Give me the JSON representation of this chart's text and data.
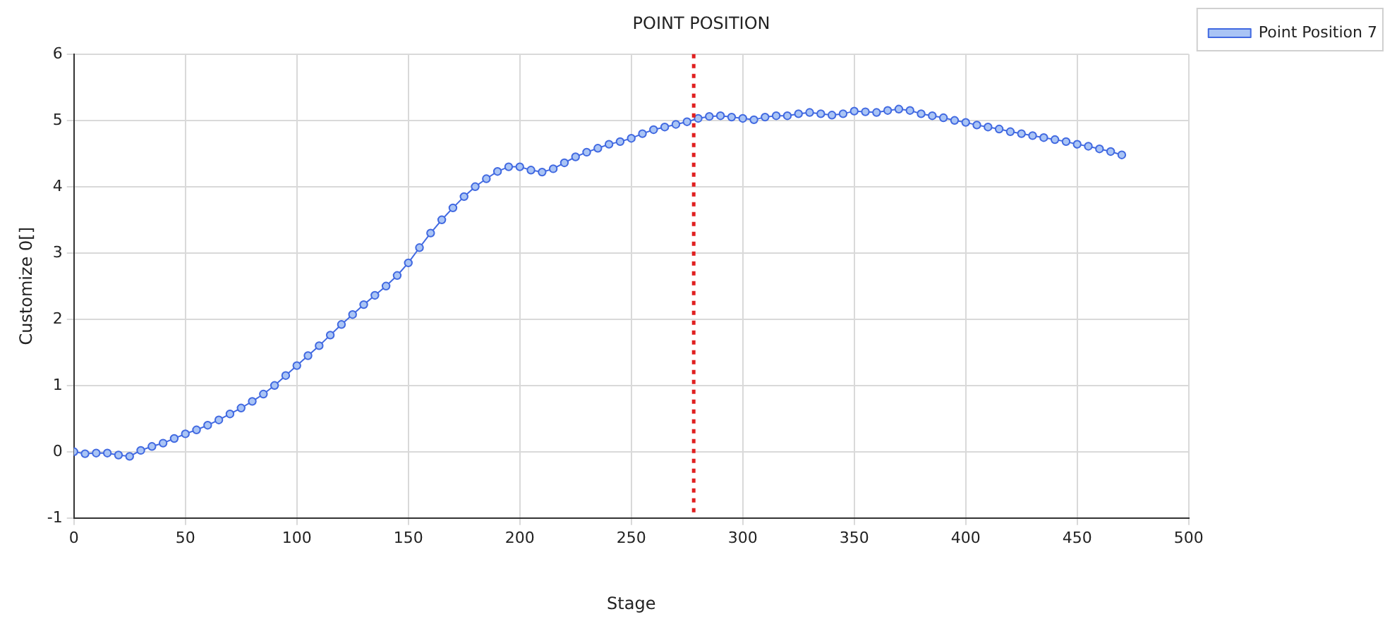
{
  "chart_data": {
    "type": "line",
    "title": "POINT POSITION",
    "xlabel": "Stage",
    "ylabel": "Customize 0[]",
    "x": [
      0,
      5,
      10,
      15,
      20,
      25,
      30,
      35,
      40,
      45,
      50,
      55,
      60,
      65,
      70,
      75,
      80,
      85,
      90,
      95,
      100,
      105,
      110,
      115,
      120,
      125,
      130,
      135,
      140,
      145,
      150,
      155,
      160,
      165,
      170,
      175,
      180,
      185,
      190,
      195,
      200,
      205,
      210,
      215,
      220,
      225,
      230,
      235,
      240,
      245,
      250,
      255,
      260,
      265,
      270,
      275,
      280,
      285,
      290,
      295,
      300,
      305,
      310,
      315,
      320,
      325,
      330,
      335,
      340,
      345,
      350,
      355,
      360,
      365,
      370,
      375,
      380,
      385,
      390,
      395,
      400,
      405,
      410,
      415,
      420,
      425,
      430,
      435,
      440,
      445,
      450,
      455,
      460,
      465,
      470
    ],
    "series": [
      {
        "name": "Point Position 7",
        "color": "#4169e1",
        "values": [
          0,
          -0.03,
          -0.02,
          -0.02,
          -0.05,
          -0.07,
          0.02,
          0.08,
          0.13,
          0.2,
          0.27,
          0.33,
          0.4,
          0.48,
          0.57,
          0.66,
          0.76,
          0.87,
          1.0,
          1.15,
          1.3,
          1.45,
          1.6,
          1.76,
          1.92,
          2.07,
          2.22,
          2.36,
          2.5,
          2.66,
          2.85,
          3.08,
          3.3,
          3.5,
          3.68,
          3.85,
          4.0,
          4.12,
          4.23,
          4.3,
          4.3,
          4.25,
          4.22,
          4.27,
          4.36,
          4.45,
          4.52,
          4.58,
          4.64,
          4.68,
          4.73,
          4.8,
          4.86,
          4.9,
          4.94,
          4.98,
          5.03,
          5.06,
          5.07,
          5.05,
          5.03,
          5.01,
          5.05,
          5.07,
          5.07,
          5.1,
          5.12,
          5.1,
          5.08,
          5.1,
          5.14,
          5.13,
          5.12,
          5.15,
          5.17,
          5.15,
          5.1,
          5.07,
          5.04,
          5.0,
          4.97,
          4.93,
          4.9,
          4.87,
          4.83,
          4.8,
          4.77,
          4.74,
          4.71,
          4.68,
          4.64,
          4.61,
          4.57,
          4.53,
          4.48
        ]
      }
    ],
    "xlim": [
      0,
      500
    ],
    "xticks": [
      0,
      50,
      100,
      150,
      200,
      250,
      300,
      350,
      400,
      450,
      500
    ],
    "ylim": [
      -1,
      6
    ],
    "yticks": [
      -1,
      0,
      1,
      2,
      3,
      4,
      5,
      6
    ],
    "ref_lines": [
      {
        "axis": "x",
        "value": 278,
        "color": "#e02020",
        "line_style": "dotted"
      }
    ],
    "grid": true,
    "legend": "top right",
    "marker": "circle",
    "line_style": "solid"
  }
}
